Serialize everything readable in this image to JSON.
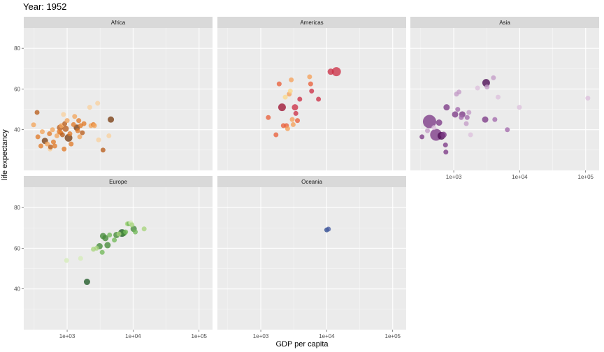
{
  "title": "Year: 1952",
  "chart_data": {
    "type": "scatter",
    "title": "Year: 1952",
    "xlabel": "GDP per capita",
    "ylabel": "life expectancy",
    "x_scale": "log10",
    "xlim": [
      220,
      160000
    ],
    "ylim": [
      20,
      90
    ],
    "x_ticks": [
      {
        "value": 1000,
        "label": "1e+03"
      },
      {
        "value": 10000,
        "label": "1e+04"
      },
      {
        "value": 100000,
        "label": "1e+05"
      }
    ],
    "y_ticks": [
      {
        "value": 40,
        "label": "40"
      },
      {
        "value": 60,
        "label": "60"
      },
      {
        "value": 80,
        "label": "80"
      }
    ],
    "grid": true,
    "legend": "none",
    "facets": [
      {
        "name": "Africa",
        "colors": [
          "#f9d19f",
          "#f2a55c",
          "#e07b2a",
          "#b95e1c",
          "#7a3d12"
        ],
        "points": [
          {
            "x": 310,
            "y": 42.4,
            "size": 3,
            "shade": 1
          },
          {
            "x": 350,
            "y": 48.5,
            "size": 3,
            "shade": 3
          },
          {
            "x": 360,
            "y": 36.5,
            "size": 3,
            "shade": 2
          },
          {
            "x": 400,
            "y": 32.0,
            "size": 3,
            "shade": 2
          },
          {
            "x": 420,
            "y": 39.0,
            "size": 3,
            "shade": 1
          },
          {
            "x": 460,
            "y": 34.5,
            "size": 4,
            "shade": 4
          },
          {
            "x": 500,
            "y": 33.0,
            "size": 3,
            "shade": 1
          },
          {
            "x": 540,
            "y": 38.0,
            "size": 3,
            "shade": 2
          },
          {
            "x": 550,
            "y": 30.5,
            "size": 3,
            "shade": 0
          },
          {
            "x": 560,
            "y": 31.5,
            "size": 3,
            "shade": 3
          },
          {
            "x": 600,
            "y": 40.0,
            "size": 3,
            "shade": 1
          },
          {
            "x": 620,
            "y": 34.0,
            "size": 3,
            "shade": 2
          },
          {
            "x": 650,
            "y": 32.0,
            "size": 3,
            "shade": 2
          },
          {
            "x": 700,
            "y": 37.0,
            "size": 3,
            "shade": 1
          },
          {
            "x": 760,
            "y": 39.0,
            "size": 3,
            "shade": 2
          },
          {
            "x": 780,
            "y": 41.0,
            "size": 4,
            "shade": 3
          },
          {
            "x": 800,
            "y": 38.5,
            "size": 3,
            "shade": 2
          },
          {
            "x": 820,
            "y": 42.0,
            "size": 3,
            "shade": 1
          },
          {
            "x": 850,
            "y": 37.5,
            "size": 3,
            "shade": 3
          },
          {
            "x": 880,
            "y": 47.5,
            "size": 3,
            "shade": 0
          },
          {
            "x": 900,
            "y": 30.5,
            "size": 3,
            "shade": 2
          },
          {
            "x": 920,
            "y": 43.0,
            "size": 3,
            "shade": 3
          },
          {
            "x": 950,
            "y": 40.5,
            "size": 4,
            "shade": 3
          },
          {
            "x": 1000,
            "y": 44.5,
            "size": 3,
            "shade": 1
          },
          {
            "x": 1050,
            "y": 36.0,
            "size": 5,
            "shade": 4
          },
          {
            "x": 1100,
            "y": 38.0,
            "size": 3,
            "shade": 2
          },
          {
            "x": 1150,
            "y": 33.0,
            "size": 3,
            "shade": 2
          },
          {
            "x": 1250,
            "y": 42.5,
            "size": 3,
            "shade": 2
          },
          {
            "x": 1300,
            "y": 46.5,
            "size": 3,
            "shade": 1
          },
          {
            "x": 1400,
            "y": 41.0,
            "size": 4,
            "shade": 4
          },
          {
            "x": 1450,
            "y": 39.5,
            "size": 3,
            "shade": 2
          },
          {
            "x": 1500,
            "y": 44.5,
            "size": 3,
            "shade": 2
          },
          {
            "x": 1550,
            "y": 36.5,
            "size": 3,
            "shade": 1
          },
          {
            "x": 1600,
            "y": 42.0,
            "size": 3,
            "shade": 2
          },
          {
            "x": 1700,
            "y": 38.5,
            "size": 3,
            "shade": 3
          },
          {
            "x": 1800,
            "y": 43.0,
            "size": 3,
            "shade": 2
          },
          {
            "x": 2200,
            "y": 51.0,
            "size": 3,
            "shade": 0
          },
          {
            "x": 2300,
            "y": 42.0,
            "size": 3,
            "shade": 1
          },
          {
            "x": 2500,
            "y": 42.5,
            "size": 3,
            "shade": 2
          },
          {
            "x": 2600,
            "y": 42.0,
            "size": 3,
            "shade": 1
          },
          {
            "x": 2900,
            "y": 53.0,
            "size": 3,
            "shade": 0
          },
          {
            "x": 3000,
            "y": 35.0,
            "size": 3,
            "shade": 0
          },
          {
            "x": 3500,
            "y": 30.0,
            "size": 3,
            "shade": 3
          },
          {
            "x": 4300,
            "y": 37.0,
            "size": 3,
            "shade": 0
          },
          {
            "x": 4600,
            "y": 45.0,
            "size": 4,
            "shade": 4
          }
        ]
      },
      {
        "name": "Americas",
        "colors": [
          "#fbd88a",
          "#f5a05a",
          "#e9603b",
          "#cc3146",
          "#9e1433"
        ],
        "points": [
          {
            "x": 1300,
            "y": 46.0,
            "size": 3,
            "shade": 2
          },
          {
            "x": 1700,
            "y": 37.5,
            "size": 3,
            "shade": 2
          },
          {
            "x": 1900,
            "y": 62.5,
            "size": 3,
            "shade": 2
          },
          {
            "x": 2100,
            "y": 51.0,
            "size": 5,
            "shade": 4
          },
          {
            "x": 2200,
            "y": 42.0,
            "size": 3,
            "shade": 2
          },
          {
            "x": 2350,
            "y": 56.0,
            "size": 3,
            "shade": 0
          },
          {
            "x": 2450,
            "y": 42.0,
            "size": 3,
            "shade": 2
          },
          {
            "x": 2550,
            "y": 40.5,
            "size": 3,
            "shade": 1
          },
          {
            "x": 2700,
            "y": 57.5,
            "size": 3,
            "shade": 1
          },
          {
            "x": 2800,
            "y": 59.0,
            "size": 3,
            "shade": 0
          },
          {
            "x": 2900,
            "y": 64.5,
            "size": 3,
            "shade": 1
          },
          {
            "x": 3000,
            "y": 45.0,
            "size": 3,
            "shade": 1
          },
          {
            "x": 3100,
            "y": 42.5,
            "size": 3,
            "shade": 1
          },
          {
            "x": 3300,
            "y": 51.0,
            "size": 4,
            "shade": 3
          },
          {
            "x": 3400,
            "y": 48.0,
            "size": 3,
            "shade": 3
          },
          {
            "x": 3600,
            "y": 44.5,
            "size": 3,
            "shade": 2
          },
          {
            "x": 3900,
            "y": 55.0,
            "size": 3,
            "shade": 3
          },
          {
            "x": 5500,
            "y": 66.0,
            "size": 3,
            "shade": 1
          },
          {
            "x": 5700,
            "y": 62.5,
            "size": 3,
            "shade": 2
          },
          {
            "x": 5900,
            "y": 59.0,
            "size": 3,
            "shade": 3
          },
          {
            "x": 7500,
            "y": 55.0,
            "size": 3,
            "shade": 3
          },
          {
            "x": 11500,
            "y": 68.5,
            "size": 4,
            "shade": 3
          },
          {
            "x": 14000,
            "y": 68.5,
            "size": 6,
            "shade": 3
          }
        ]
      },
      {
        "name": "Asia",
        "colors": [
          "#ddc0dd",
          "#c39bc6",
          "#a36aac",
          "#7c3a86",
          "#4a0a52"
        ],
        "points": [
          {
            "x": 330,
            "y": 36.5,
            "size": 3,
            "shade": 3
          },
          {
            "x": 400,
            "y": 39.5,
            "size": 3,
            "shade": 1
          },
          {
            "x": 430,
            "y": 44.0,
            "size": 9,
            "shade": 3
          },
          {
            "x": 500,
            "y": 41.0,
            "size": 3,
            "shade": 0
          },
          {
            "x": 540,
            "y": 37.5,
            "size": 8,
            "shade": 3
          },
          {
            "x": 600,
            "y": 43.5,
            "size": 4,
            "shade": 3
          },
          {
            "x": 650,
            "y": 37.0,
            "size": 5,
            "shade": 4
          },
          {
            "x": 700,
            "y": 37.5,
            "size": 4,
            "shade": 3
          },
          {
            "x": 750,
            "y": 32.5,
            "size": 3,
            "shade": 3
          },
          {
            "x": 760,
            "y": 29.0,
            "size": 3,
            "shade": 3
          },
          {
            "x": 780,
            "y": 51.0,
            "size": 4,
            "shade": 3
          },
          {
            "x": 1050,
            "y": 47.5,
            "size": 4,
            "shade": 3
          },
          {
            "x": 1100,
            "y": 57.5,
            "size": 3,
            "shade": 1
          },
          {
            "x": 1150,
            "y": 50.0,
            "size": 3,
            "shade": 2
          },
          {
            "x": 1200,
            "y": 58.5,
            "size": 3,
            "shade": 1
          },
          {
            "x": 1300,
            "y": 46.0,
            "size": 3,
            "shade": 2
          },
          {
            "x": 1350,
            "y": 47.5,
            "size": 4,
            "shade": 3
          },
          {
            "x": 1550,
            "y": 43.0,
            "size": 3,
            "shade": 1
          },
          {
            "x": 1600,
            "y": 46.0,
            "size": 3,
            "shade": 2
          },
          {
            "x": 1700,
            "y": 48.5,
            "size": 3,
            "shade": 1
          },
          {
            "x": 1800,
            "y": 37.5,
            "size": 3,
            "shade": 0
          },
          {
            "x": 2300,
            "y": 60.5,
            "size": 3,
            "shade": 0
          },
          {
            "x": 3000,
            "y": 45.0,
            "size": 4,
            "shade": 3
          },
          {
            "x": 3100,
            "y": 63.0,
            "size": 5,
            "shade": 4
          },
          {
            "x": 3200,
            "y": 61.0,
            "size": 3,
            "shade": 1
          },
          {
            "x": 4000,
            "y": 65.5,
            "size": 3,
            "shade": 1
          },
          {
            "x": 4200,
            "y": 45.0,
            "size": 3,
            "shade": 2
          },
          {
            "x": 4700,
            "y": 56.0,
            "size": 3,
            "shade": 0
          },
          {
            "x": 6500,
            "y": 40.0,
            "size": 3,
            "shade": 2
          },
          {
            "x": 9900,
            "y": 51.0,
            "size": 3,
            "shade": 0
          },
          {
            "x": 108000,
            "y": 55.5,
            "size": 3,
            "shade": 0
          }
        ]
      },
      {
        "name": "Europe",
        "colors": [
          "#d5ecb8",
          "#a8d57e",
          "#72b95a",
          "#458a3a",
          "#1f5a26"
        ],
        "points": [
          {
            "x": 980,
            "y": 54.0,
            "size": 3,
            "shade": 0
          },
          {
            "x": 1600,
            "y": 55.0,
            "size": 3,
            "shade": 0
          },
          {
            "x": 2000,
            "y": 43.5,
            "size": 4,
            "shade": 4
          },
          {
            "x": 2500,
            "y": 59.5,
            "size": 3,
            "shade": 1
          },
          {
            "x": 2800,
            "y": 60.0,
            "size": 3,
            "shade": 1
          },
          {
            "x": 3100,
            "y": 61.0,
            "size": 4,
            "shade": 3
          },
          {
            "x": 3400,
            "y": 58.0,
            "size": 3,
            "shade": 2
          },
          {
            "x": 3500,
            "y": 66.0,
            "size": 4,
            "shade": 3
          },
          {
            "x": 3800,
            "y": 65.0,
            "size": 4,
            "shade": 3
          },
          {
            "x": 4100,
            "y": 61.5,
            "size": 4,
            "shade": 3
          },
          {
            "x": 4400,
            "y": 66.5,
            "size": 3,
            "shade": 2
          },
          {
            "x": 5200,
            "y": 64.0,
            "size": 3,
            "shade": 2
          },
          {
            "x": 5600,
            "y": 66.5,
            "size": 4,
            "shade": 3
          },
          {
            "x": 6100,
            "y": 67.0,
            "size": 3,
            "shade": 1
          },
          {
            "x": 6800,
            "y": 67.5,
            "size": 5,
            "shade": 4
          },
          {
            "x": 7200,
            "y": 67.5,
            "size": 4,
            "shade": 3
          },
          {
            "x": 7700,
            "y": 68.0,
            "size": 3,
            "shade": 2
          },
          {
            "x": 8200,
            "y": 72.0,
            "size": 3,
            "shade": 1
          },
          {
            "x": 8600,
            "y": 72.0,
            "size": 3,
            "shade": 2
          },
          {
            "x": 9200,
            "y": 72.5,
            "size": 3,
            "shade": 0
          },
          {
            "x": 9600,
            "y": 71.5,
            "size": 3,
            "shade": 1
          },
          {
            "x": 10200,
            "y": 69.5,
            "size": 4,
            "shade": 3
          },
          {
            "x": 10800,
            "y": 68.0,
            "size": 3,
            "shade": 2
          },
          {
            "x": 14700,
            "y": 69.5,
            "size": 3,
            "shade": 1
          }
        ]
      },
      {
        "name": "Oceania",
        "colors": [
          "#2f4b8f",
          "#4a5fa3"
        ],
        "points": [
          {
            "x": 10000,
            "y": 69.0,
            "size": 3,
            "shade": 0
          },
          {
            "x": 10600,
            "y": 69.4,
            "size": 3,
            "shade": 1
          }
        ]
      }
    ]
  }
}
